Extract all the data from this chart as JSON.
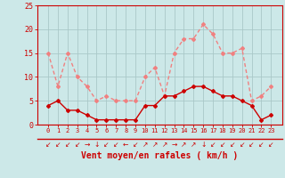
{
  "hours": [
    0,
    1,
    2,
    3,
    4,
    5,
    6,
    7,
    8,
    9,
    10,
    11,
    12,
    13,
    14,
    15,
    16,
    17,
    18,
    19,
    20,
    21,
    22,
    23
  ],
  "rafales": [
    15,
    8,
    15,
    10,
    8,
    5,
    6,
    5,
    5,
    5,
    10,
    12,
    6,
    15,
    18,
    18,
    21,
    19,
    15,
    15,
    16,
    5,
    6,
    8
  ],
  "moyen": [
    4,
    5,
    3,
    3,
    2,
    1,
    1,
    1,
    1,
    1,
    4,
    4,
    6,
    6,
    7,
    8,
    8,
    7,
    6,
    6,
    5,
    4,
    1,
    2
  ],
  "rafales_color": "#f08080",
  "moyen_color": "#cc0000",
  "bg_color": "#cce8e8",
  "grid_color": "#aac8c8",
  "axis_color": "#cc0000",
  "xlabel": "Vent moyen/en rafales ( km/h )",
  "ylim": [
    0,
    25
  ],
  "yticks": [
    0,
    5,
    10,
    15,
    20,
    25
  ],
  "marker": "D",
  "marker_size": 2,
  "line_width": 1.0,
  "directions": [
    "↙",
    "↙",
    "↙",
    "↙",
    "→",
    "↓",
    "↙",
    "↙",
    "←",
    "↙",
    "↗",
    "↗",
    "↗",
    "→",
    "↗",
    "↗",
    "↓",
    "↙",
    "↙",
    "↙",
    "↙",
    "↙",
    "↙",
    "↙"
  ]
}
